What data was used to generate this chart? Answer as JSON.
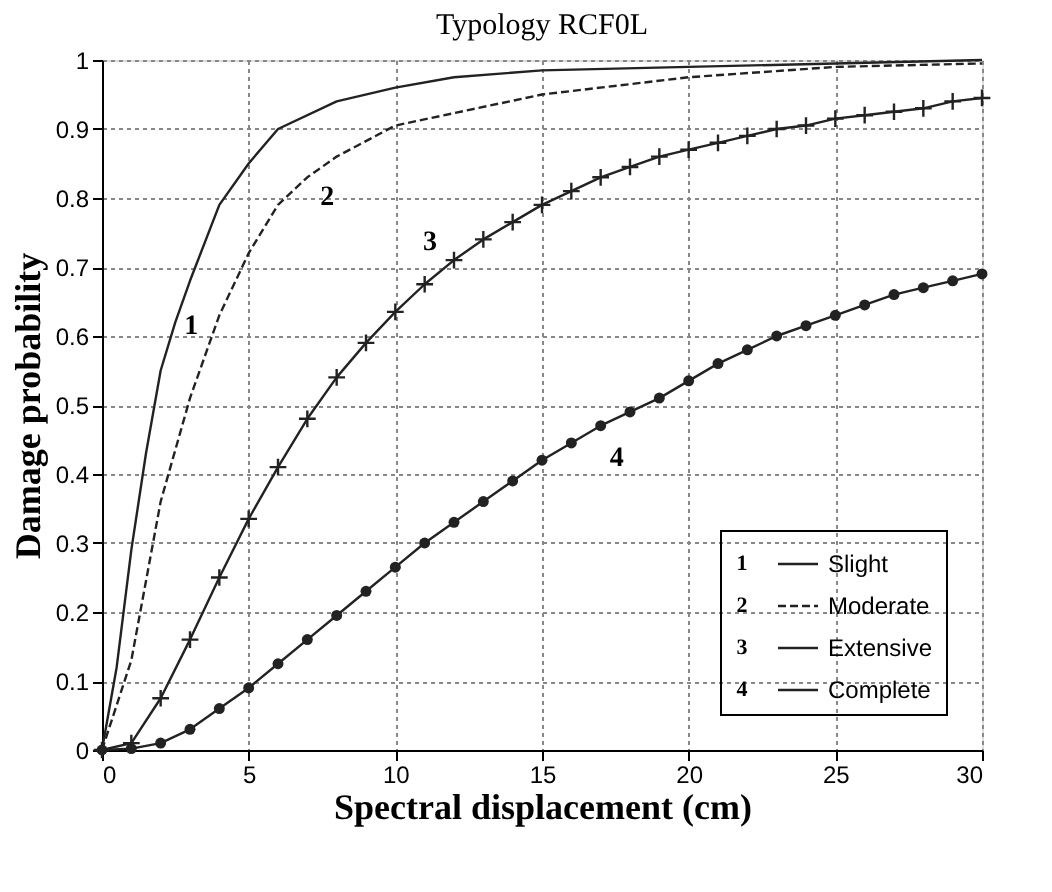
{
  "chart_data": {
    "type": "line",
    "title": "Typology RCF0L",
    "xlabel": "Spectral displacement (cm)",
    "ylabel": "Damage probability",
    "xlim": [
      0,
      30
    ],
    "xticks": [
      0,
      5,
      10,
      15,
      20,
      25,
      30
    ],
    "ylim": [
      0,
      1
    ],
    "yticks": [
      0,
      0.1,
      0.2,
      0.3,
      0.4,
      0.5,
      0.6,
      0.7,
      0.8,
      0.9,
      1
    ],
    "grid": true,
    "legend": "bottom right",
    "series": [
      {
        "name": "Slight",
        "color": "#222222",
        "line_style": "solid",
        "marker": "none",
        "x": [
          0,
          0.5,
          1,
          1.5,
          2,
          2.5,
          3,
          4,
          5,
          6,
          8,
          10,
          12,
          15,
          20,
          25,
          30
        ],
        "values": [
          0,
          0.12,
          0.29,
          0.43,
          0.55,
          0.62,
          0.68,
          0.79,
          0.85,
          0.9,
          0.94,
          0.96,
          0.975,
          0.985,
          0.99,
          0.995,
          1.0
        ]
      },
      {
        "name": "Moderate",
        "color": "#222222",
        "line_style": "dashed",
        "marker": "none",
        "x": [
          0,
          1,
          2,
          3,
          4,
          5,
          6,
          7,
          8,
          10,
          15,
          20,
          25,
          30
        ],
        "values": [
          0,
          0.13,
          0.36,
          0.51,
          0.63,
          0.72,
          0.79,
          0.83,
          0.86,
          0.905,
          0.95,
          0.975,
          0.99,
          0.995
        ]
      },
      {
        "name": "Extensive",
        "color": "#222222",
        "line_style": "solid",
        "marker": "cross",
        "x": [
          0,
          1,
          2,
          3,
          4,
          5,
          6,
          7,
          8,
          9,
          10,
          11,
          12,
          13,
          14,
          15,
          16,
          17,
          18,
          19,
          20,
          21,
          22,
          23,
          24,
          25,
          26,
          27,
          28,
          29,
          30
        ],
        "values": [
          0,
          0.01,
          0.075,
          0.16,
          0.25,
          0.335,
          0.41,
          0.48,
          0.54,
          0.59,
          0.635,
          0.675,
          0.71,
          0.74,
          0.765,
          0.79,
          0.81,
          0.83,
          0.845,
          0.86,
          0.87,
          0.88,
          0.89,
          0.9,
          0.905,
          0.915,
          0.92,
          0.925,
          0.93,
          0.94,
          0.945
        ]
      },
      {
        "name": "Complete",
        "color": "#222222",
        "line_style": "solid",
        "marker": "circle",
        "x": [
          0,
          1,
          2,
          3,
          4,
          5,
          6,
          7,
          8,
          9,
          10,
          11,
          12,
          13,
          14,
          15,
          16,
          17,
          18,
          19,
          20,
          21,
          22,
          23,
          24,
          25,
          26,
          27,
          28,
          29,
          30
        ],
        "values": [
          0,
          0.002,
          0.01,
          0.03,
          0.06,
          0.09,
          0.125,
          0.16,
          0.195,
          0.23,
          0.265,
          0.3,
          0.33,
          0.36,
          0.39,
          0.42,
          0.445,
          0.47,
          0.49,
          0.51,
          0.535,
          0.56,
          0.58,
          0.6,
          0.615,
          0.63,
          0.645,
          0.66,
          0.67,
          0.68,
          0.69
        ]
      }
    ],
    "annotations": [
      "1",
      "2",
      "3",
      "4"
    ]
  }
}
